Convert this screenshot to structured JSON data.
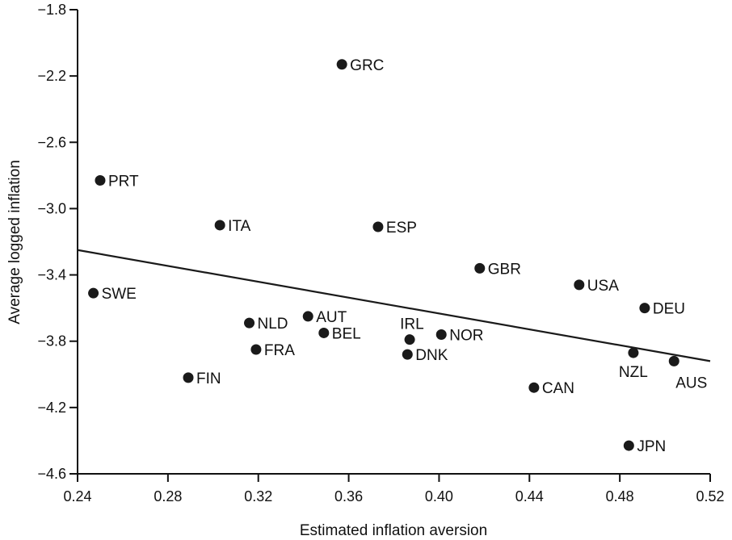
{
  "chart_data": {
    "type": "scatter",
    "xlabel": "Estimated inflation aversion",
    "ylabel": "Average logged inflation",
    "xlim": [
      0.24,
      0.52
    ],
    "ylim": [
      -4.6,
      -1.8
    ],
    "xticks": [
      "0.24",
      "0.28",
      "0.32",
      "0.36",
      "0.40",
      "0.44",
      "0.48",
      "0.52"
    ],
    "yticks": [
      "−1.8",
      "−2.2",
      "−2.6",
      "−3.0",
      "−3.4",
      "−3.8",
      "−4.2",
      "−4.6"
    ],
    "grid": false,
    "legend": "none",
    "points": [
      {
        "label": "GRC",
        "x": 0.357,
        "y": -2.13
      },
      {
        "label": "PRT",
        "x": 0.25,
        "y": -2.83
      },
      {
        "label": "ITA",
        "x": 0.303,
        "y": -3.1
      },
      {
        "label": "ESP",
        "x": 0.373,
        "y": -3.11
      },
      {
        "label": "GBR",
        "x": 0.418,
        "y": -3.36
      },
      {
        "label": "USA",
        "x": 0.462,
        "y": -3.46
      },
      {
        "label": "SWE",
        "x": 0.247,
        "y": -3.51
      },
      {
        "label": "DEU",
        "x": 0.491,
        "y": -3.6
      },
      {
        "label": "AUT",
        "x": 0.342,
        "y": -3.65
      },
      {
        "label": "NLD",
        "x": 0.316,
        "y": -3.69
      },
      {
        "label": "BEL",
        "x": 0.349,
        "y": -3.75
      },
      {
        "label": "IRL",
        "x": 0.387,
        "y": -3.79
      },
      {
        "label": "NOR",
        "x": 0.401,
        "y": -3.76
      },
      {
        "label": "FRA",
        "x": 0.319,
        "y": -3.85
      },
      {
        "label": "DNK",
        "x": 0.386,
        "y": -3.88
      },
      {
        "label": "NZL",
        "x": 0.486,
        "y": -3.87
      },
      {
        "label": "AUS",
        "x": 0.504,
        "y": -3.92
      },
      {
        "label": "FIN",
        "x": 0.289,
        "y": -4.02
      },
      {
        "label": "CAN",
        "x": 0.442,
        "y": -4.08
      },
      {
        "label": "JPN",
        "x": 0.484,
        "y": -4.43
      }
    ],
    "fit_line": {
      "x": [
        0.24,
        0.52
      ],
      "y": [
        -3.25,
        -3.92
      ]
    }
  },
  "colors": {
    "marker": "#1a1a1a",
    "line": "#1a1a1a",
    "text": "#111111"
  }
}
